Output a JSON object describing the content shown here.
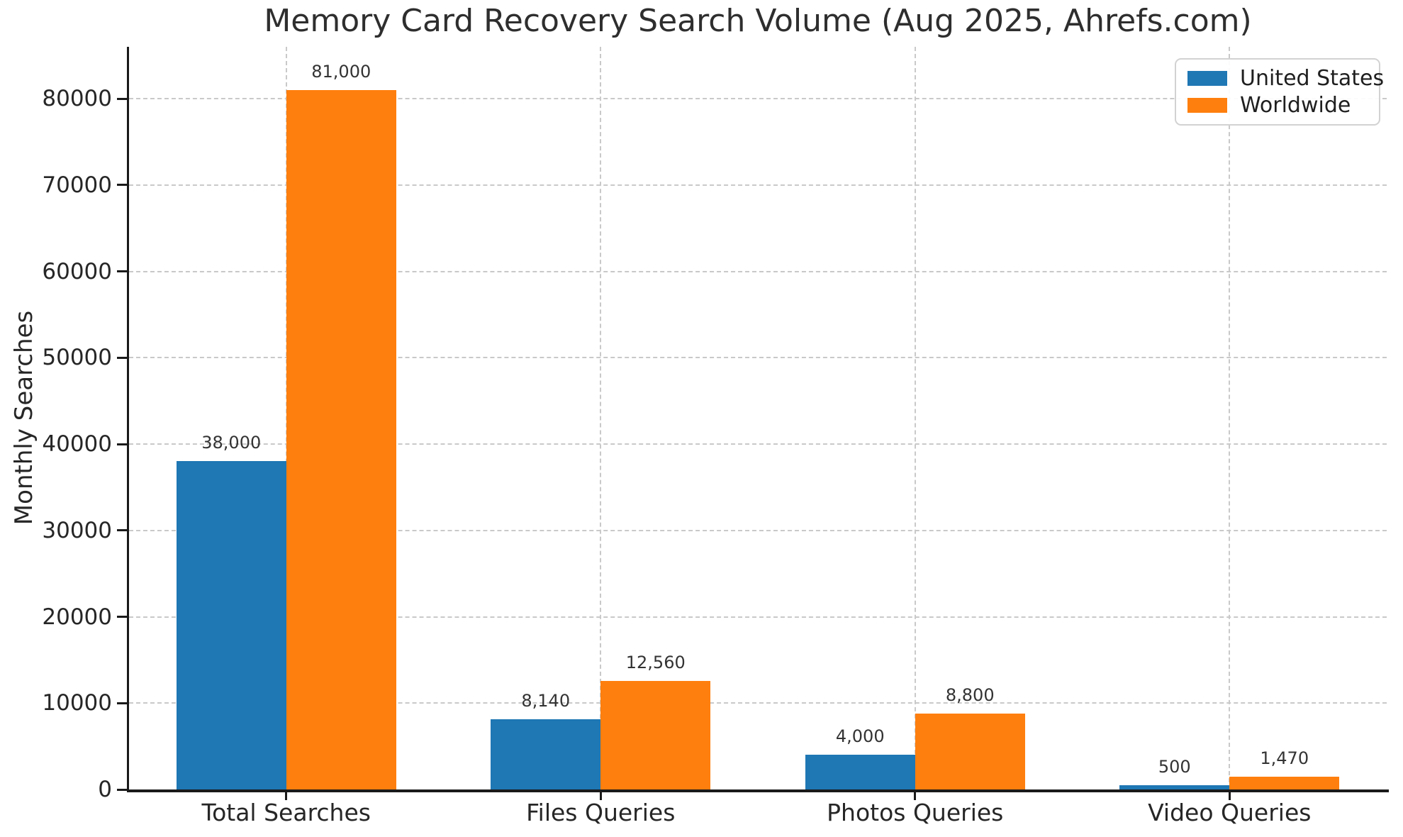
{
  "chart_data": {
    "type": "bar",
    "title": "Memory Card Recovery Search Volume (Aug 2025, Ahrefs.com)",
    "ylabel": "Monthly Searches",
    "xlabel": "",
    "categories": [
      "Total Searches",
      "Files Queries",
      "Photos Queries",
      "Video Queries"
    ],
    "series": [
      {
        "name": "United States",
        "color": "#1f77b4",
        "values": [
          38000,
          8140,
          4000,
          500
        ],
        "value_labels": [
          "38,000",
          "8,140",
          "4,000",
          "500"
        ]
      },
      {
        "name": "Worldwide",
        "color": "#ff7f0e",
        "values": [
          81000,
          12560,
          8800,
          1470
        ],
        "value_labels": [
          "81,000",
          "12,560",
          "8,800",
          "1,470"
        ]
      }
    ],
    "ylim": [
      0,
      86000
    ],
    "yticks": [
      0,
      10000,
      20000,
      30000,
      40000,
      50000,
      60000,
      70000,
      80000
    ],
    "grid": "dashed, horizontal at each y tick and vertical at each category center",
    "legend_position": "upper right"
  }
}
